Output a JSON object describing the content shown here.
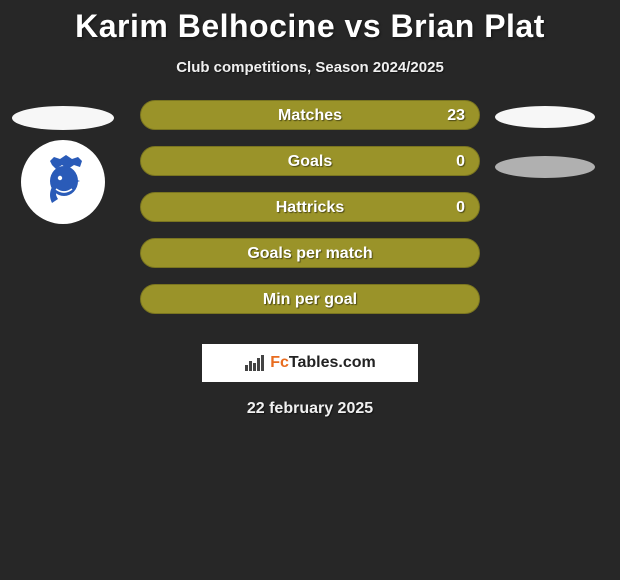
{
  "header": {
    "title": "Karim Belhocine vs Brian Plat",
    "subtitle": "Club competitions, Season 2024/2025"
  },
  "left": {
    "oval": {
      "width": 102,
      "height": 24,
      "fill": "#f7f7f7"
    },
    "logo_bg": "#ffffff",
    "logo_color": "#2a5bb8"
  },
  "right": {
    "oval1": {
      "width": 100,
      "height": 22,
      "fill": "#f7f7f7"
    },
    "oval2": {
      "width": 100,
      "height": 22,
      "fill": "#b0b0b0"
    }
  },
  "bars": {
    "fill": "#9a9329",
    "border": "#7a7520",
    "items": [
      {
        "label": "Matches",
        "value_right": "23"
      },
      {
        "label": "Goals",
        "value_right": "0"
      },
      {
        "label": "Hattricks",
        "value_right": "0"
      },
      {
        "label": "Goals per match",
        "value_right": ""
      },
      {
        "label": "Min per goal",
        "value_right": ""
      }
    ]
  },
  "brand": {
    "prefix_color": "#e86c1f",
    "text": "FcTables.com"
  },
  "footer": {
    "date": "22 february 2025"
  }
}
